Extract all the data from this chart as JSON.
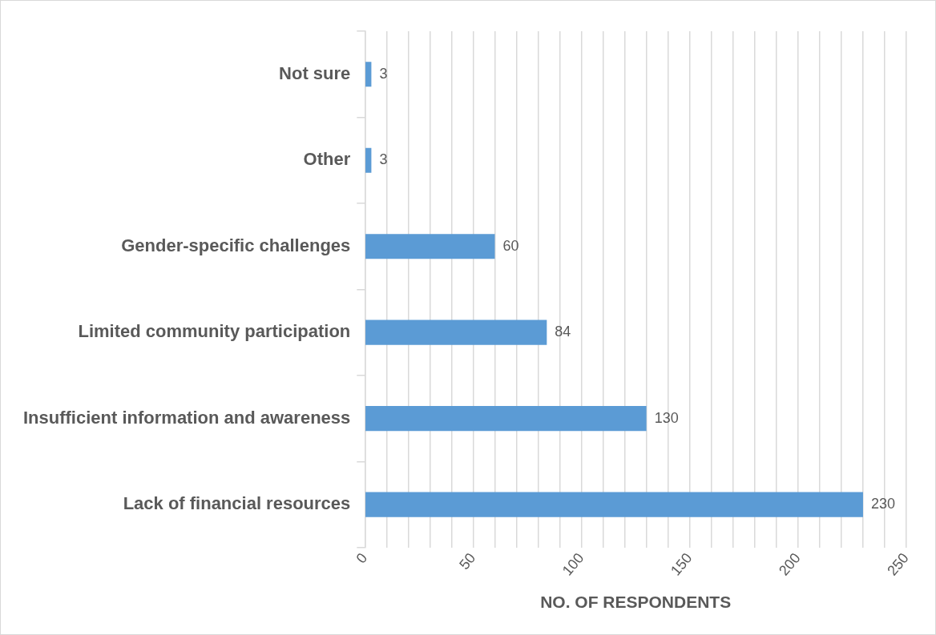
{
  "chart_data": {
    "type": "bar",
    "orientation": "horizontal",
    "xlabel": "NO. OF RESPONDENTS",
    "categories": [
      "Not sure",
      "Other",
      "Gender-specific challenges",
      "Limited community participation",
      "Insufficient information and awareness",
      "Lack of financial resources"
    ],
    "values": [
      3,
      3,
      60,
      84,
      130,
      230
    ],
    "color": "#5b9bd5",
    "xlim": [
      0,
      250
    ],
    "xticks": [
      0,
      {
        "value": 10,
        "label": null
      },
      {
        "value": 20,
        "label": null
      },
      {
        "value": 30,
        "label": null
      },
      {
        "value": 40,
        "label": null
      },
      50,
      {
        "value": 60,
        "label": null
      },
      {
        "value": 70,
        "label": null
      },
      {
        "value": 80,
        "label": null
      },
      {
        "value": 90,
        "label": null
      },
      100,
      {
        "value": 110,
        "label": null
      },
      {
        "value": 120,
        "label": null
      },
      {
        "value": 130,
        "label": null
      },
      {
        "value": 140,
        "label": null
      },
      150,
      {
        "value": 160,
        "label": null
      },
      {
        "value": 170,
        "label": null
      },
      {
        "value": 180,
        "label": null
      },
      {
        "value": 190,
        "label": null
      },
      200,
      {
        "value": 210,
        "label": null
      },
      {
        "value": 220,
        "label": null
      },
      {
        "value": 230,
        "label": null
      },
      {
        "value": 240,
        "label": null
      },
      250
    ],
    "grid": "x",
    "legend": false,
    "data_labels": true
  }
}
